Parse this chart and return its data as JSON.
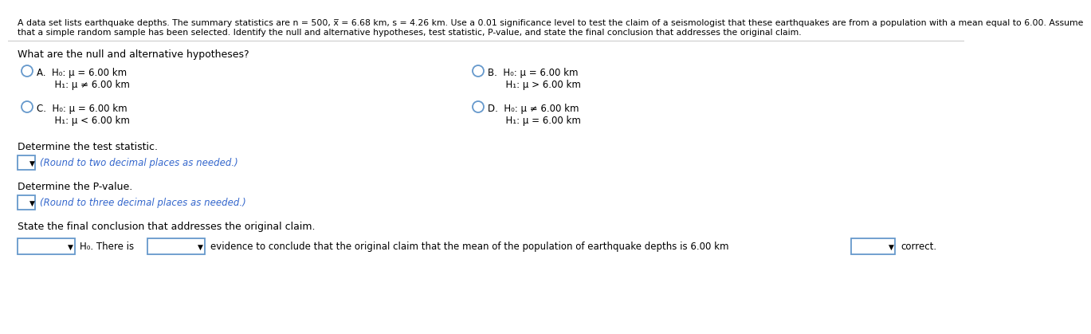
{
  "bg_color": "#ffffff",
  "title_line1": "A data set lists earthquake depths. The summary statistics are n = 500, x̅ = 6.68 km, s = 4.26 km. Use a 0.01 significance level to test the claim of a seismologist that these earthquakes are from a population with a mean equal to 6.00. Assume",
  "title_line2": "that a simple random sample has been selected. Identify the null and alternative hypotheses, test statistic, P-value, and state the final conclusion that addresses the original claim.",
  "question1": "What are the null and alternative hypotheses?",
  "optA_line1": "A.  H₀: μ = 6.00 km",
  "optA_line2": "      H₁: μ ≠ 6.00 km",
  "optB_line1": "B.  H₀: μ = 6.00 km",
  "optB_line2": "      H₁: μ > 6.00 km",
  "optC_line1": "C.  H₀: μ = 6.00 km",
  "optC_line2": "      H₁: μ < 6.00 km",
  "optD_line1": "D.  H₀: μ ≠ 6.00 km",
  "optD_line2": "      H₁: μ = 6.00 km",
  "q2_label": "Determine the test statistic.",
  "q2_hint": "(Round to two decimal places as needed.)",
  "q3_label": "Determine the P-value.",
  "q3_hint": "(Round to three decimal places as needed.)",
  "q4_label": "State the final conclusion that addresses the original claim.",
  "q4_text": "evidence to conclude that the original claim that the mean of the population of earthquake depths is 6.00 km",
  "q4_end": "correct.",
  "q4_h0": "H₀. There is",
  "circle_color": "#6699cc",
  "text_color": "#000000",
  "hint_color": "#3366cc",
  "box_border": "#6699cc",
  "dropdown_color": "#3366cc"
}
